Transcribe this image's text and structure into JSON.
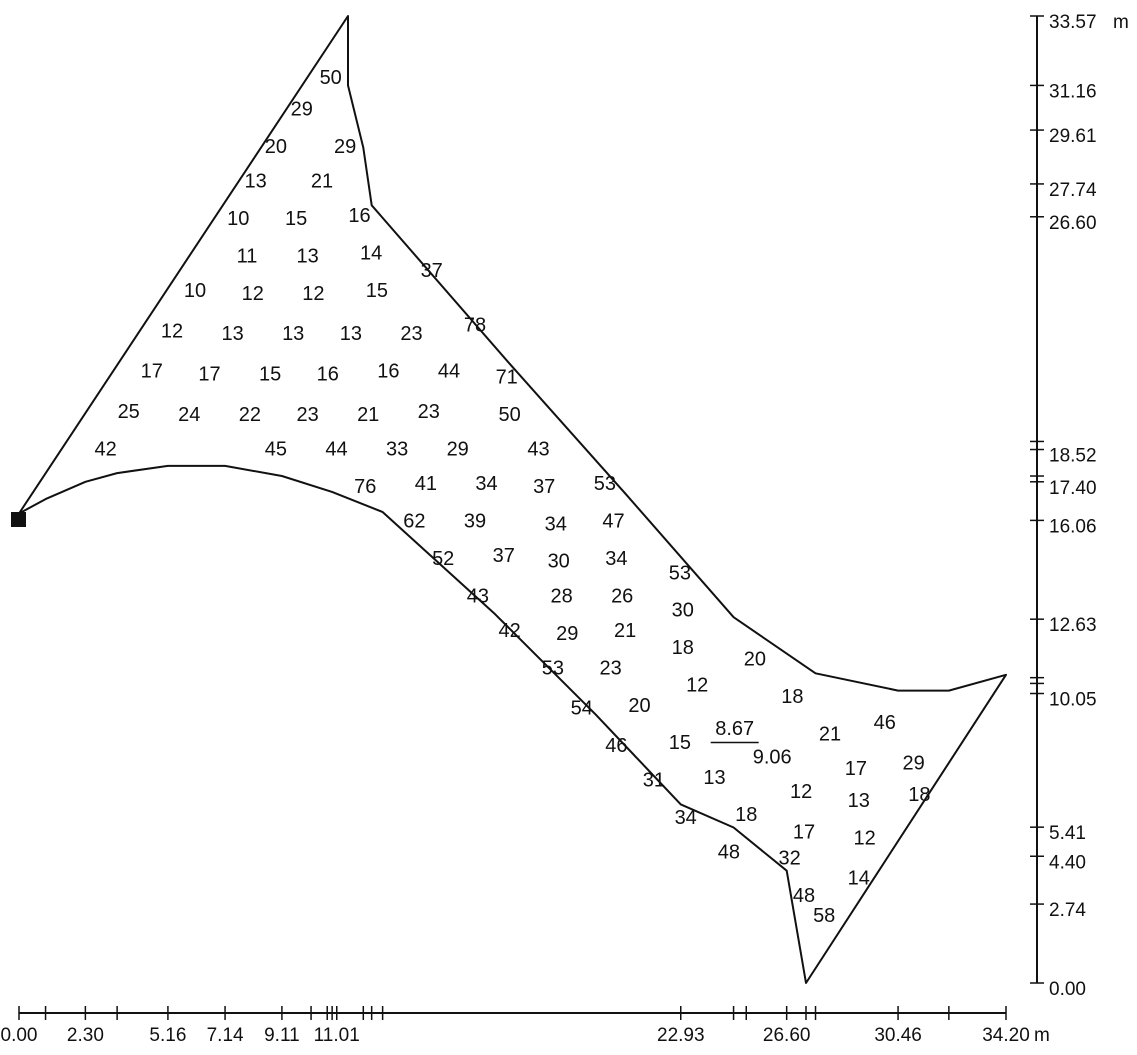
{
  "colors": {
    "ink": "#111111",
    "background": "#ffffff"
  },
  "units": {
    "x_unit": "m",
    "y_unit": "m"
  },
  "x_axis": {
    "labels": [
      "0.00",
      "2.30",
      "5.16",
      "7.14",
      "9.11",
      "11.01",
      "22.93",
      "26.60",
      "30.46",
      "34.20"
    ],
    "label_values": [
      0.0,
      2.3,
      5.16,
      7.14,
      9.11,
      11.01,
      22.93,
      26.6,
      30.46,
      34.2
    ],
    "tick_values": [
      0.0,
      0.92,
      2.3,
      3.4,
      5.16,
      7.14,
      9.11,
      10.12,
      10.68,
      10.85,
      11.01,
      11.93,
      12.22,
      12.6,
      22.93,
      24.76,
      25.2,
      26.6,
      27.27,
      27.6,
      30.46,
      32.22,
      34.2
    ]
  },
  "y_axis": {
    "labels": [
      "33.57",
      "31.16",
      "29.61",
      "27.74",
      "26.60",
      "18.52",
      "17.40",
      "16.06",
      "12.63",
      "10.05",
      "5.41",
      "4.40",
      "2.74",
      "0.00"
    ],
    "label_values": [
      33.57,
      31.16,
      29.61,
      27.74,
      26.6,
      18.52,
      17.4,
      16.06,
      12.63,
      10.05,
      5.41,
      4.4,
      2.74,
      0.0
    ],
    "tick_values": [
      33.57,
      31.16,
      29.61,
      27.74,
      26.6,
      18.8,
      18.52,
      17.6,
      17.4,
      16.06,
      12.63,
      10.6,
      10.4,
      10.05,
      5.41,
      4.4,
      2.74,
      0.0
    ]
  },
  "boundary_outline": [
    [
      0.0,
      16.3
    ],
    [
      0.92,
      16.8
    ],
    [
      2.3,
      17.4
    ],
    [
      3.4,
      17.7
    ],
    [
      5.16,
      17.95
    ],
    [
      7.14,
      17.95
    ],
    [
      9.11,
      17.6
    ],
    [
      10.85,
      17.05
    ],
    [
      12.6,
      16.35
    ],
    [
      16.5,
      12.8
    ],
    [
      20.0,
      9.3
    ],
    [
      22.93,
      6.2
    ],
    [
      24.76,
      5.4
    ],
    [
      26.6,
      3.9
    ],
    [
      27.27,
      0.0
    ],
    [
      34.2,
      10.7
    ],
    [
      32.22,
      10.15
    ],
    [
      30.46,
      10.15
    ],
    [
      27.6,
      10.75
    ],
    [
      24.76,
      12.7
    ],
    [
      21.0,
      17.0
    ],
    [
      17.0,
      21.5
    ],
    [
      12.22,
      27.0
    ],
    [
      11.93,
      29.0
    ],
    [
      11.4,
      31.16
    ],
    [
      11.4,
      33.57
    ]
  ],
  "labels": [
    {
      "t": "50",
      "x": 10.8,
      "y": 31.4
    },
    {
      "t": "29",
      "x": 9.8,
      "y": 30.3
    },
    {
      "t": "20",
      "x": 8.9,
      "y": 29.0
    },
    {
      "t": "29",
      "x": 11.3,
      "y": 29.0
    },
    {
      "t": "13",
      "x": 8.2,
      "y": 27.8
    },
    {
      "t": "21",
      "x": 10.5,
      "y": 27.8
    },
    {
      "t": "10",
      "x": 7.6,
      "y": 26.5
    },
    {
      "t": "15",
      "x": 9.6,
      "y": 26.5
    },
    {
      "t": "16",
      "x": 11.8,
      "y": 26.6
    },
    {
      "t": "11",
      "x": 7.9,
      "y": 25.2
    },
    {
      "t": "13",
      "x": 10.0,
      "y": 25.2
    },
    {
      "t": "14",
      "x": 12.2,
      "y": 25.3
    },
    {
      "t": "37",
      "x": 14.3,
      "y": 24.7
    },
    {
      "t": "10",
      "x": 6.1,
      "y": 24.0
    },
    {
      "t": "12",
      "x": 8.1,
      "y": 23.9
    },
    {
      "t": "12",
      "x": 10.2,
      "y": 23.9
    },
    {
      "t": "15",
      "x": 12.4,
      "y": 24.0
    },
    {
      "t": "78",
      "x": 15.8,
      "y": 22.8
    },
    {
      "t": "12",
      "x": 5.3,
      "y": 22.6
    },
    {
      "t": "13",
      "x": 7.4,
      "y": 22.5
    },
    {
      "t": "13",
      "x": 9.5,
      "y": 22.5
    },
    {
      "t": "13",
      "x": 11.5,
      "y": 22.5
    },
    {
      "t": "23",
      "x": 13.6,
      "y": 22.5
    },
    {
      "t": "17",
      "x": 4.6,
      "y": 21.2
    },
    {
      "t": "17",
      "x": 6.6,
      "y": 21.1
    },
    {
      "t": "15",
      "x": 8.7,
      "y": 21.1
    },
    {
      "t": "16",
      "x": 10.7,
      "y": 21.1
    },
    {
      "t": "16",
      "x": 12.8,
      "y": 21.2
    },
    {
      "t": "44",
      "x": 14.9,
      "y": 21.2
    },
    {
      "t": "71",
      "x": 16.9,
      "y": 21.0
    },
    {
      "t": "25",
      "x": 3.8,
      "y": 19.8
    },
    {
      "t": "24",
      "x": 5.9,
      "y": 19.7
    },
    {
      "t": "22",
      "x": 8.0,
      "y": 19.7
    },
    {
      "t": "23",
      "x": 10.0,
      "y": 19.7
    },
    {
      "t": "21",
      "x": 12.1,
      "y": 19.7
    },
    {
      "t": "23",
      "x": 14.2,
      "y": 19.8
    },
    {
      "t": "50",
      "x": 17.0,
      "y": 19.7
    },
    {
      "t": "42",
      "x": 3.0,
      "y": 18.5
    },
    {
      "t": "45",
      "x": 8.9,
      "y": 18.5
    },
    {
      "t": "44",
      "x": 11.0,
      "y": 18.5
    },
    {
      "t": "33",
      "x": 13.1,
      "y": 18.5
    },
    {
      "t": "29",
      "x": 15.2,
      "y": 18.5
    },
    {
      "t": "43",
      "x": 18.0,
      "y": 18.5
    },
    {
      "t": "76",
      "x": 12.0,
      "y": 17.2
    },
    {
      "t": "41",
      "x": 14.1,
      "y": 17.3
    },
    {
      "t": "34",
      "x": 16.2,
      "y": 17.3
    },
    {
      "t": "37",
      "x": 18.2,
      "y": 17.2
    },
    {
      "t": "53",
      "x": 20.3,
      "y": 17.3
    },
    {
      "t": "62",
      "x": 13.7,
      "y": 16.0
    },
    {
      "t": "39",
      "x": 15.8,
      "y": 16.0
    },
    {
      "t": "34",
      "x": 18.6,
      "y": 15.9
    },
    {
      "t": "47",
      "x": 20.6,
      "y": 16.0
    },
    {
      "t": "52",
      "x": 14.7,
      "y": 14.7
    },
    {
      "t": "37",
      "x": 16.8,
      "y": 14.8
    },
    {
      "t": "30",
      "x": 18.7,
      "y": 14.6
    },
    {
      "t": "34",
      "x": 20.7,
      "y": 14.7
    },
    {
      "t": "53",
      "x": 22.9,
      "y": 14.2
    },
    {
      "t": "43",
      "x": 15.9,
      "y": 13.4
    },
    {
      "t": "28",
      "x": 18.8,
      "y": 13.4
    },
    {
      "t": "26",
      "x": 20.9,
      "y": 13.4
    },
    {
      "t": "30",
      "x": 23.0,
      "y": 12.9
    },
    {
      "t": "42",
      "x": 17.0,
      "y": 12.2
    },
    {
      "t": "29",
      "x": 19.0,
      "y": 12.1
    },
    {
      "t": "21",
      "x": 21.0,
      "y": 12.2
    },
    {
      "t": "18",
      "x": 23.0,
      "y": 11.6
    },
    {
      "t": "20",
      "x": 25.5,
      "y": 11.2
    },
    {
      "t": "53",
      "x": 18.5,
      "y": 10.9
    },
    {
      "t": "23",
      "x": 20.5,
      "y": 10.9
    },
    {
      "t": "12",
      "x": 23.5,
      "y": 10.3
    },
    {
      "t": "18",
      "x": 26.8,
      "y": 9.9
    },
    {
      "t": "54",
      "x": 19.5,
      "y": 9.5
    },
    {
      "t": "20",
      "x": 21.5,
      "y": 9.6
    },
    {
      "t": "46",
      "x": 30.0,
      "y": 9.0
    },
    {
      "t": "46",
      "x": 20.7,
      "y": 8.2
    },
    {
      "t": "15",
      "x": 22.9,
      "y": 8.3
    },
    {
      "t": "21",
      "x": 28.1,
      "y": 8.6
    },
    {
      "t": "29",
      "x": 31.0,
      "y": 7.6
    },
    {
      "t": "9.06",
      "x": 26.1,
      "y": 7.8
    },
    {
      "t": "17",
      "x": 29.0,
      "y": 7.4
    },
    {
      "t": "31",
      "x": 22.0,
      "y": 7.0
    },
    {
      "t": "13",
      "x": 24.1,
      "y": 7.1
    },
    {
      "t": "12",
      "x": 27.1,
      "y": 6.6
    },
    {
      "t": "13",
      "x": 29.1,
      "y": 6.3
    },
    {
      "t": "18",
      "x": 31.2,
      "y": 6.5
    },
    {
      "t": "34",
      "x": 23.1,
      "y": 5.7
    },
    {
      "t": "18",
      "x": 25.2,
      "y": 5.8
    },
    {
      "t": "17",
      "x": 27.2,
      "y": 5.2
    },
    {
      "t": "12",
      "x": 29.3,
      "y": 5.0
    },
    {
      "t": "48",
      "x": 24.6,
      "y": 4.5
    },
    {
      "t": "32",
      "x": 26.7,
      "y": 4.3
    },
    {
      "t": "14",
      "x": 29.1,
      "y": 3.6
    },
    {
      "t": "48",
      "x": 27.2,
      "y": 3.0
    },
    {
      "t": "58",
      "x": 27.9,
      "y": 2.3
    }
  ],
  "marked_value": {
    "t": "8.67",
    "x": 24.8,
    "y": 8.8
  }
}
